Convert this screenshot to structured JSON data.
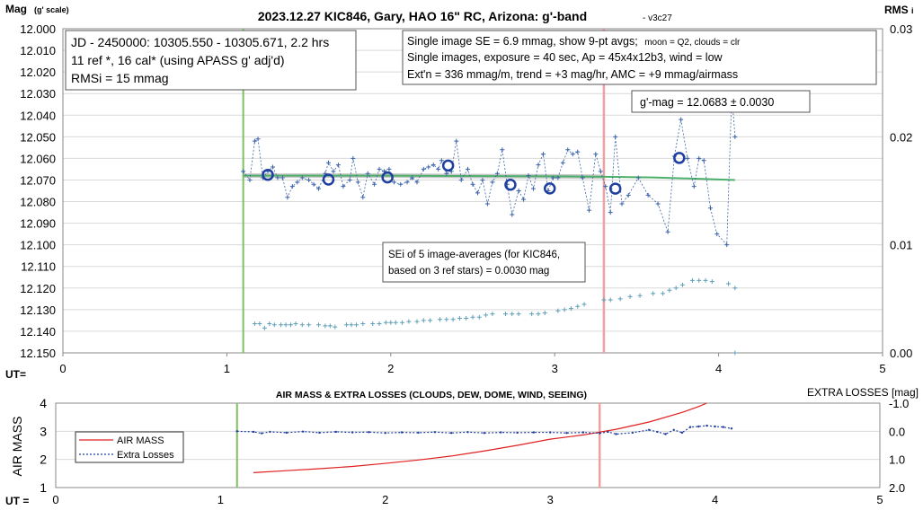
{
  "header": {
    "title": "2023.12.27 KIC846, Gary, HAO 16\" RC, Arizona: g'-band",
    "version": "- v3c27",
    "y_axis_label": "Mag",
    "y_axis_label_small": "(g' scale)",
    "rms_label": "RMS",
    "rms_sub": "i",
    "ut_label": "UT="
  },
  "info_boxes": {
    "left": [
      "JD - 2450000: 10305.550 - 10305.671, 2.2 hrs",
      "11 ref *, 16 cal* (using APASS g' adj'd)",
      "RMSi = 15 mmag"
    ],
    "right_1a": "Single image SE = 6.9 mmag, show  9-pt avgs;",
    "right_1b": "moon = Q2, clouds = clr",
    "right_2": "Single images, exposure = 40 sec, Ap = 45x4x12b3, wind = low",
    "right_3": "Ext'n = 336 mmag/m, trend = +3 mag/hr, AMC = +9 mmag/airmass",
    "gmag": "g'-mag = 12.0683 ± 0.0030",
    "sei_1": "SEi of 5 image-averages (for KIC846,",
    "sei_2": "based on 3 ref stars) = 0.0030 mag"
  },
  "colors": {
    "single_points": "#3a63a8",
    "averages": "#1f3fa0",
    "rms_points": "#5f9fb8",
    "trend_green": "#4caf6a",
    "trend_gray": "#9a9a9a",
    "start_line": "#80c060",
    "end_line": "#f0a0a0",
    "airmass": "#e02020",
    "losses": "#1f3fa0"
  },
  "chart_data": [
    {
      "type": "scatter",
      "title": "2023.12.27 KIC846, Gary, HAO 16\" RC, Arizona: g'-band",
      "xlabel": "UT=",
      "ylabel": "Mag (g' scale)",
      "y2label": "RMS i",
      "xlim": [
        0,
        5
      ],
      "ylim": [
        12.15,
        12.0
      ],
      "y2lim": [
        0,
        0.03
      ],
      "x_ticks": [
        "0",
        "1",
        "2",
        "3",
        "4",
        "5"
      ],
      "y_ticks": [
        "12.000",
        "12.010",
        "12.020",
        "12.030",
        "12.040",
        "12.050",
        "12.060",
        "12.070",
        "12.080",
        "12.090",
        "12.100",
        "12.110",
        "12.120",
        "12.130",
        "12.140",
        "12.150"
      ],
      "y2_ticks": [
        "0.00",
        "0.01",
        "0.02",
        "0.03"
      ],
      "grid": true,
      "vlines": [
        1.1,
        3.3
      ],
      "series": [
        {
          "points": [
            [
              1.1,
              12.066
            ],
            [
              1.14,
              12.07
            ],
            [
              1.17,
              12.052
            ],
            [
              1.19,
              12.051
            ],
            [
              1.22,
              12.069
            ],
            [
              1.25,
              12.066
            ],
            [
              1.28,
              12.064
            ],
            [
              1.31,
              12.069
            ],
            [
              1.34,
              12.069
            ],
            [
              1.37,
              12.078
            ],
            [
              1.4,
              12.073
            ],
            [
              1.43,
              12.071
            ],
            [
              1.46,
              12.069
            ],
            [
              1.5,
              12.07
            ],
            [
              1.53,
              12.072
            ],
            [
              1.56,
              12.074
            ],
            [
              1.6,
              12.067
            ],
            [
              1.62,
              12.062
            ],
            [
              1.65,
              12.066
            ],
            [
              1.68,
              12.063
            ],
            [
              1.71,
              12.073
            ],
            [
              1.75,
              12.07
            ],
            [
              1.77,
              12.06
            ],
            [
              1.8,
              12.071
            ],
            [
              1.83,
              12.078
            ],
            [
              1.86,
              12.067
            ],
            [
              1.9,
              12.072
            ],
            [
              1.93,
              12.065
            ],
            [
              1.96,
              12.066
            ],
            [
              1.99,
              12.065
            ],
            [
              2.02,
              12.071
            ],
            [
              2.06,
              12.072
            ],
            [
              2.1,
              12.071
            ],
            [
              2.13,
              12.069
            ],
            [
              2.16,
              12.071
            ],
            [
              2.2,
              12.065
            ],
            [
              2.23,
              12.064
            ],
            [
              2.26,
              12.063
            ],
            [
              2.29,
              12.065
            ],
            [
              2.31,
              12.061
            ],
            [
              2.34,
              12.067
            ],
            [
              2.37,
              12.066
            ],
            [
              2.4,
              12.052
            ],
            [
              2.43,
              12.07
            ],
            [
              2.47,
              12.065
            ],
            [
              2.5,
              12.072
            ],
            [
              2.53,
              12.076
            ],
            [
              2.56,
              12.07
            ],
            [
              2.59,
              12.081
            ],
            [
              2.62,
              12.071
            ],
            [
              2.65,
              12.067
            ],
            [
              2.68,
              12.056
            ],
            [
              2.71,
              12.072
            ],
            [
              2.74,
              12.086
            ],
            [
              2.78,
              12.075
            ],
            [
              2.81,
              12.079
            ],
            [
              2.84,
              12.068
            ],
            [
              2.87,
              12.074
            ],
            [
              2.9,
              12.063
            ],
            [
              2.93,
              12.058
            ],
            [
              2.96,
              12.075
            ],
            [
              2.99,
              12.069
            ],
            [
              3.02,
              12.069
            ],
            [
              3.05,
              12.062
            ],
            [
              3.08,
              12.056
            ],
            [
              3.11,
              12.058
            ],
            [
              3.14,
              12.057
            ],
            [
              3.17,
              12.069
            ],
            [
              3.21,
              12.084
            ],
            [
              3.25,
              12.058
            ],
            [
              3.28,
              12.066
            ],
            [
              3.31,
              12.073
            ],
            [
              3.34,
              12.085
            ],
            [
              3.37,
              12.05
            ],
            [
              3.41,
              12.081
            ],
            [
              3.45,
              12.077
            ],
            [
              3.51,
              12.069
            ],
            [
              3.57,
              12.077
            ],
            [
              3.63,
              12.081
            ],
            [
              3.69,
              12.094
            ],
            [
              3.73,
              12.059
            ],
            [
              3.77,
              12.042
            ],
            [
              3.81,
              12.06
            ],
            [
              3.85,
              12.073
            ],
            [
              3.88,
              12.06
            ],
            [
              3.91,
              12.061
            ],
            [
              3.95,
              12.083
            ],
            [
              3.99,
              12.095
            ],
            [
              4.05,
              12.1
            ],
            [
              4.08,
              12.03
            ],
            [
              4.1,
              12.05
            ]
          ]
        },
        {
          "points": [
            [
              1.25,
              12.0676
            ],
            [
              1.62,
              12.0698
            ],
            [
              1.98,
              12.0688
            ],
            [
              2.35,
              12.0633
            ],
            [
              2.73,
              12.0722
            ],
            [
              2.97,
              12.0739
            ],
            [
              3.37,
              12.074
            ],
            [
              3.76,
              12.0598
            ]
          ]
        },
        {
          "y_axis": "secondary",
          "points": [
            [
              1.17,
              0.0027
            ],
            [
              1.2,
              0.0027
            ],
            [
              1.23,
              0.0023
            ],
            [
              1.26,
              0.0027
            ],
            [
              1.29,
              0.0026
            ],
            [
              1.33,
              0.0026
            ],
            [
              1.36,
              0.0026
            ],
            [
              1.39,
              0.0026
            ],
            [
              1.42,
              0.0027
            ],
            [
              1.46,
              0.0026
            ],
            [
              1.5,
              0.0026
            ],
            [
              1.56,
              0.0026
            ],
            [
              1.6,
              0.0025
            ],
            [
              1.63,
              0.0025
            ],
            [
              1.66,
              0.0024
            ],
            [
              1.73,
              0.0026
            ],
            [
              1.76,
              0.0026
            ],
            [
              1.79,
              0.0026
            ],
            [
              1.83,
              0.0027
            ],
            [
              1.89,
              0.0027
            ],
            [
              1.93,
              0.0027
            ],
            [
              1.97,
              0.0028
            ],
            [
              2.0,
              0.0028
            ],
            [
              2.03,
              0.0028
            ],
            [
              2.07,
              0.0028
            ],
            [
              2.11,
              0.0029
            ],
            [
              2.16,
              0.0029
            ],
            [
              2.2,
              0.003
            ],
            [
              2.24,
              0.003
            ],
            [
              2.3,
              0.0031
            ],
            [
              2.34,
              0.0031
            ],
            [
              2.38,
              0.0031
            ],
            [
              2.42,
              0.0032
            ],
            [
              2.46,
              0.0032
            ],
            [
              2.5,
              0.0033
            ],
            [
              2.54,
              0.0033
            ],
            [
              2.58,
              0.0035
            ],
            [
              2.62,
              0.0036
            ],
            [
              2.7,
              0.0036
            ],
            [
              2.74,
              0.0036
            ],
            [
              2.78,
              0.0036
            ],
            [
              2.86,
              0.0036
            ],
            [
              2.9,
              0.0036
            ],
            [
              2.94,
              0.0037
            ],
            [
              3.02,
              0.0039
            ],
            [
              3.06,
              0.004
            ],
            [
              3.1,
              0.0041
            ],
            [
              3.14,
              0.0043
            ],
            [
              3.18,
              0.0045
            ],
            [
              3.3,
              0.0049
            ],
            [
              3.34,
              0.0049
            ],
            [
              3.4,
              0.005
            ],
            [
              3.46,
              0.0052
            ],
            [
              3.52,
              0.0053
            ],
            [
              3.6,
              0.0055
            ],
            [
              3.66,
              0.0055
            ],
            [
              3.7,
              0.0058
            ],
            [
              3.74,
              0.006
            ],
            [
              3.78,
              0.0063
            ],
            [
              3.84,
              0.0067
            ],
            [
              3.88,
              0.0067
            ],
            [
              3.92,
              0.0067
            ],
            [
              3.96,
              0.0066
            ],
            [
              4.06,
              0.0064
            ],
            [
              4.1,
              0.006
            ],
            [
              4.1,
              0.0
            ]
          ]
        }
      ],
      "trend": [
        [
          1.1,
          12.068
        ],
        [
          2.0,
          12.068
        ],
        [
          3.0,
          12.0683
        ],
        [
          3.3,
          12.0685
        ],
        [
          3.6,
          12.0688
        ],
        [
          3.9,
          12.0695
        ],
        [
          4.1,
          12.07
        ]
      ]
    },
    {
      "type": "line",
      "title": "AIR MASS & EXTRA LOSSES (CLOUDS, DEW, DOME, WIND, SEEING)",
      "xlabel": "UT =",
      "ylabel": "AIR MASS",
      "y2label": "EXTRA LOSSES [mag]",
      "xlim": [
        0,
        5
      ],
      "ylim": [
        1,
        4
      ],
      "y2lim": [
        2.0,
        -1.0
      ],
      "x_ticks": [
        "0",
        "1",
        "2",
        "3",
        "4",
        "5"
      ],
      "y_ticks": [
        "1",
        "2",
        "3",
        "4"
      ],
      "y2_ticks": [
        "-1.0",
        "0.0",
        "1.0",
        "2.0"
      ],
      "vlines": [
        1.1,
        3.3
      ],
      "legend": "left",
      "series": [
        {
          "name": "AIR MASS",
          "points": [
            [
              1.2,
              1.53
            ],
            [
              1.4,
              1.6
            ],
            [
              1.6,
              1.67
            ],
            [
              1.8,
              1.75
            ],
            [
              2.0,
              1.86
            ],
            [
              2.2,
              1.98
            ],
            [
              2.4,
              2.12
            ],
            [
              2.6,
              2.3
            ],
            [
              2.8,
              2.5
            ],
            [
              3.0,
              2.72
            ],
            [
              3.2,
              2.87
            ],
            [
              3.4,
              3.07
            ],
            [
              3.6,
              3.33
            ],
            [
              3.8,
              3.67
            ],
            [
              3.9,
              3.88
            ],
            [
              3.95,
              4.0
            ]
          ]
        },
        {
          "name": "Extra Losses",
          "points": [
            [
              1.1,
              0.0
            ],
            [
              1.2,
              0.02
            ],
            [
              1.25,
              0.07
            ],
            [
              1.3,
              0.02
            ],
            [
              1.4,
              0.05
            ],
            [
              1.5,
              0.01
            ],
            [
              1.6,
              0.05
            ],
            [
              1.7,
              0.02
            ],
            [
              1.8,
              0.04
            ],
            [
              1.9,
              0.03
            ],
            [
              2.0,
              0.06
            ],
            [
              2.1,
              0.04
            ],
            [
              2.2,
              0.05
            ],
            [
              2.3,
              0.03
            ],
            [
              2.4,
              0.06
            ],
            [
              2.5,
              0.03
            ],
            [
              2.6,
              0.06
            ],
            [
              2.7,
              0.04
            ],
            [
              2.8,
              0.05
            ],
            [
              2.9,
              0.04
            ],
            [
              3.0,
              0.04
            ],
            [
              3.1,
              0.06
            ],
            [
              3.2,
              0.04
            ],
            [
              3.3,
              0.07
            ],
            [
              3.35,
              0.02
            ],
            [
              3.4,
              0.1
            ],
            [
              3.5,
              0.05
            ],
            [
              3.6,
              -0.05
            ],
            [
              3.65,
              0.02
            ],
            [
              3.7,
              0.1
            ],
            [
              3.75,
              -0.05
            ],
            [
              3.8,
              0.05
            ],
            [
              3.85,
              -0.15
            ],
            [
              3.9,
              -0.17
            ],
            [
              3.95,
              -0.2
            ],
            [
              4.0,
              -0.17
            ],
            [
              4.05,
              -0.15
            ],
            [
              4.1,
              -0.1
            ]
          ]
        }
      ]
    }
  ]
}
